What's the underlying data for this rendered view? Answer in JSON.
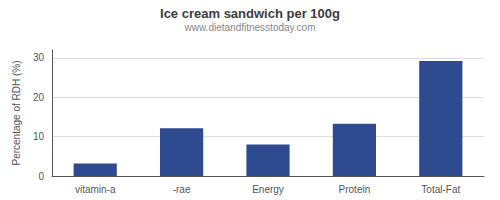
{
  "chart_data": {
    "type": "bar",
    "title": "Ice cream sandwich per 100g",
    "subtitle": "www.dietandfitnesstoday.com",
    "categories": [
      "vitamin-a",
      "-rae",
      "Energy",
      "Protein",
      "Total-Fat"
    ],
    "values": [
      3.2,
      12.1,
      8.0,
      13.3,
      29.2
    ],
    "color": "#2e4b8f",
    "ylabel": "Percentage of RDH (%)",
    "ylim": [
      0,
      32
    ],
    "yticks": [
      0,
      10,
      20,
      30
    ],
    "grid": true
  }
}
